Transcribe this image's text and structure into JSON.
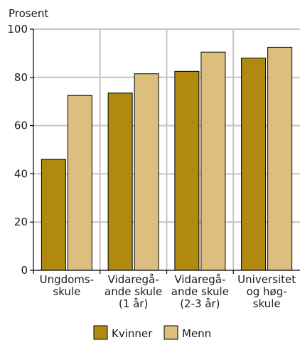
{
  "chart_data": {
    "type": "bar",
    "ylabel": "Prosent",
    "ylim": [
      0,
      100
    ],
    "yticks": [
      0,
      20,
      40,
      60,
      80,
      100
    ],
    "grid": true,
    "categories": [
      [
        "Ungdoms-",
        "skule"
      ],
      [
        "Vidaregå-",
        "ande skule",
        "(1 år)"
      ],
      [
        "Vidaregå-",
        "ande skule",
        "(2-3 år)"
      ],
      [
        "Universitet",
        "og høg-",
        "skule"
      ]
    ],
    "series": [
      {
        "name": "Kvinner",
        "color": "#b08a10",
        "values": [
          46,
          73.5,
          82.5,
          88
        ]
      },
      {
        "name": "Menn",
        "color": "#dcbe7f",
        "values": [
          72.5,
          81.5,
          90.5,
          92.5
        ]
      }
    ],
    "legend_position": "bottom"
  }
}
